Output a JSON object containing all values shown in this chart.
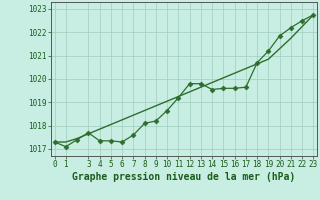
{
  "title": "Graphe pression niveau de la mer (hPa)",
  "background_color": "#c8eee4",
  "plot_bg_color": "#c8eee4",
  "grid_color": "#a0ccbc",
  "line_color": "#2d6e2d",
  "marker_color": "#2d6e2d",
  "hours": [
    0,
    1,
    2,
    3,
    4,
    5,
    6,
    7,
    8,
    9,
    10,
    11,
    12,
    13,
    14,
    15,
    16,
    17,
    18,
    19,
    20,
    21,
    22,
    23
  ],
  "pressure_data": [
    1017.3,
    1017.1,
    1017.4,
    1017.7,
    1017.35,
    1017.35,
    1017.3,
    1017.6,
    1018.1,
    1018.2,
    1018.65,
    1019.2,
    1019.8,
    1019.8,
    1019.55,
    1019.6,
    1019.6,
    1019.65,
    1020.7,
    1021.2,
    1021.85,
    1022.2,
    1022.5,
    1022.75
  ],
  "smooth_data": [
    1017.3,
    1017.3,
    1017.45,
    1017.65,
    1017.85,
    1018.05,
    1018.25,
    1018.45,
    1018.65,
    1018.85,
    1019.05,
    1019.25,
    1019.45,
    1019.65,
    1019.85,
    1020.05,
    1020.25,
    1020.45,
    1020.65,
    1020.85,
    1021.3,
    1021.75,
    1022.25,
    1022.75
  ],
  "ylim": [
    1016.7,
    1023.3
  ],
  "yticks": [
    1017,
    1018,
    1019,
    1020,
    1021,
    1022,
    1023
  ],
  "xlim": [
    -0.3,
    23.3
  ],
  "xticks": [
    0,
    1,
    3,
    4,
    5,
    6,
    7,
    8,
    9,
    10,
    11,
    12,
    13,
    14,
    15,
    16,
    17,
    18,
    19,
    20,
    21,
    22,
    23
  ],
  "title_fontsize": 7.0,
  "tick_fontsize": 5.5,
  "tick_color": "#1a5c1a",
  "axis_color": "#555555"
}
